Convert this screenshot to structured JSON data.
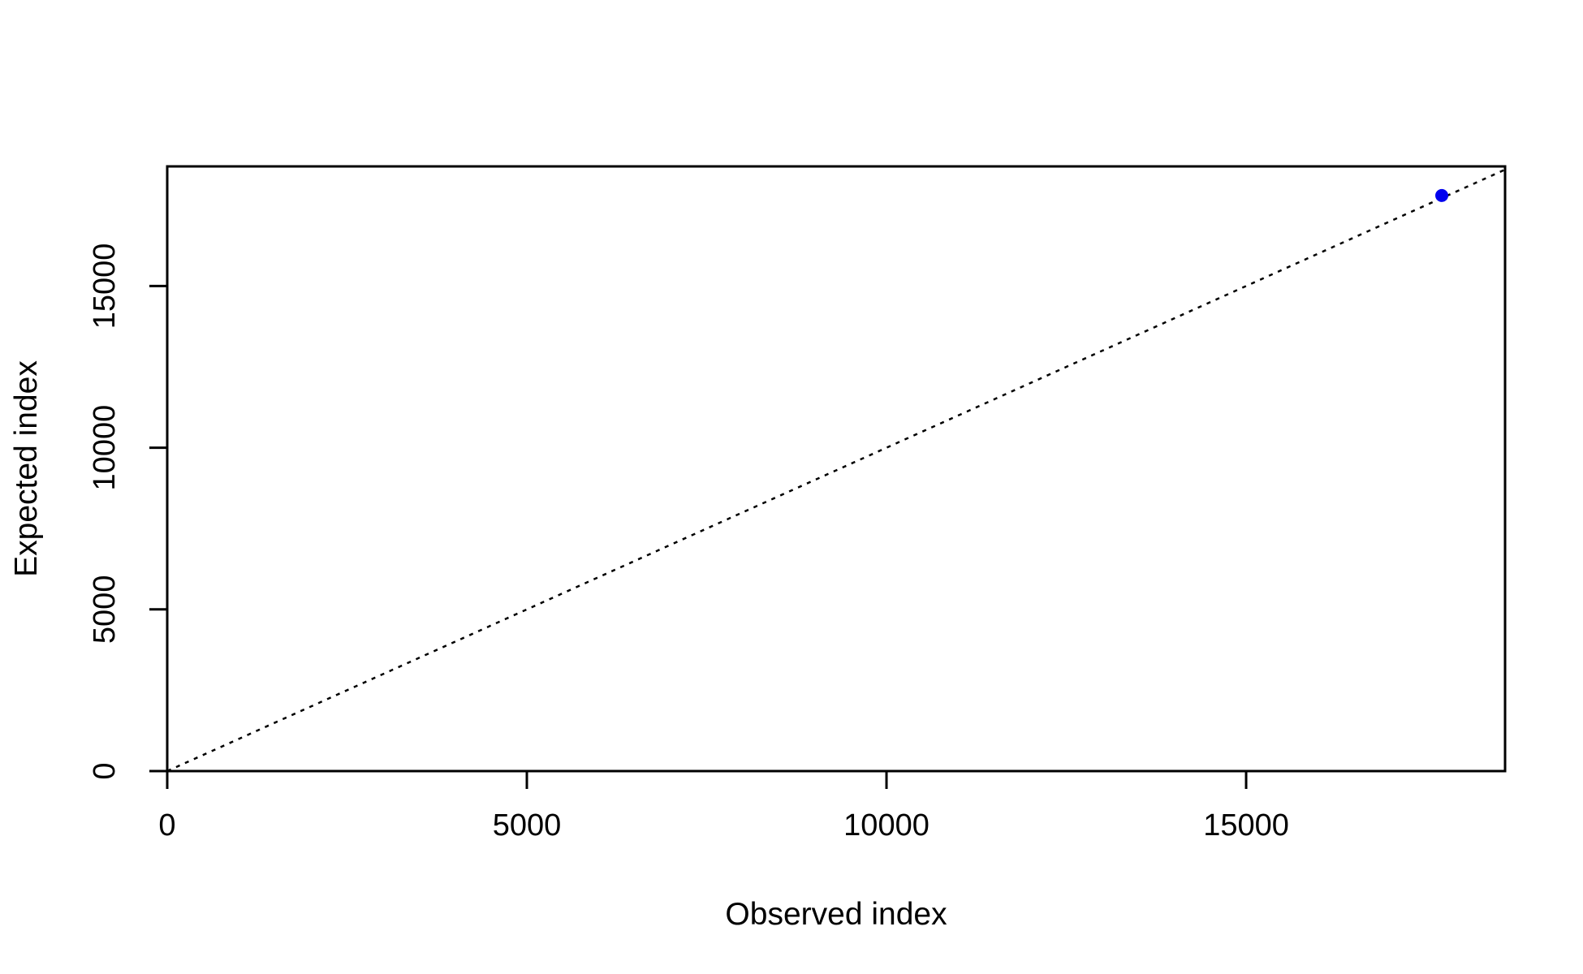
{
  "chart_data": {
    "type": "scatter",
    "xlabel": "Observed index",
    "ylabel": "Expected index",
    "xlim": [
      0,
      18600
    ],
    "ylim": [
      0,
      18700
    ],
    "x_ticks": [
      0,
      5000,
      10000,
      15000
    ],
    "y_ticks": [
      0,
      5000,
      10000,
      15000
    ],
    "x_tick_labels": [
      "0",
      "5000",
      "10000",
      "15000"
    ],
    "y_tick_labels": [
      "0",
      "5000",
      "10000",
      "15000"
    ],
    "points": [
      {
        "x": 17720,
        "y": 17800
      }
    ],
    "reference_line": {
      "type": "identity",
      "style": "dotted",
      "from": [
        0,
        0
      ],
      "to": [
        18600,
        18600
      ]
    },
    "grid": false,
    "legend": "none",
    "colors": {
      "point": "#0000ee",
      "axes": "#000000",
      "reference_line": "#000000"
    }
  }
}
